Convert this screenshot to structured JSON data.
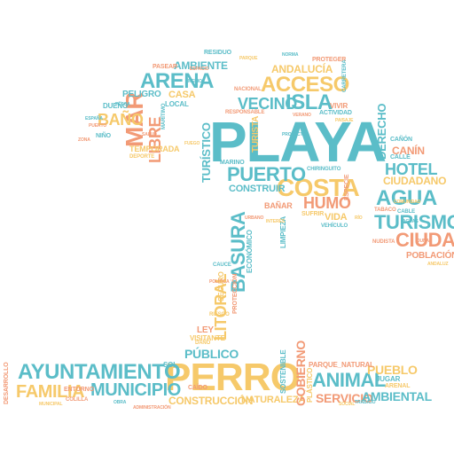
{
  "palette": {
    "teal": "#5bbdc8",
    "orange": "#f29a76",
    "yellow": "#f6c96a"
  },
  "words": [
    {
      "text": "PLAYA",
      "color": "teal"
    },
    {
      "text": "PERRO",
      "color": "yellow"
    },
    {
      "text": "AYUNTAMIENTO",
      "color": "teal"
    },
    {
      "text": "MAR",
      "color": "orange"
    },
    {
      "text": "COSTA",
      "color": "yellow"
    },
    {
      "text": "ACCESO",
      "color": "yellow"
    },
    {
      "text": "ARENA",
      "color": "teal"
    },
    {
      "text": "PUERTO",
      "color": "teal"
    },
    {
      "text": "ISLA",
      "color": "teal"
    },
    {
      "text": "VECINO",
      "color": "teal"
    },
    {
      "text": "AGUA",
      "color": "teal"
    },
    {
      "text": "TURISMO",
      "color": "teal"
    },
    {
      "text": "CIUDAD",
      "color": "orange"
    },
    {
      "text": "HOTEL",
      "color": "teal"
    },
    {
      "text": "BASURA",
      "color": "teal"
    },
    {
      "text": "LITORAL",
      "color": "yellow"
    },
    {
      "text": "ANIMAL",
      "color": "teal"
    },
    {
      "text": "MUNICIPIO",
      "color": "teal"
    },
    {
      "text": "FAMILIA",
      "color": "yellow"
    },
    {
      "text": "HUMO",
      "color": "orange"
    },
    {
      "text": "LIBRE",
      "color": "orange"
    },
    {
      "text": "BAÑO",
      "color": "yellow"
    },
    {
      "text": "CONSTRUCCIÓN",
      "color": "yellow"
    },
    {
      "text": "NATURALEZA",
      "color": "yellow"
    },
    {
      "text": "SERVICIO",
      "color": "orange"
    },
    {
      "text": "PÚBLICO",
      "color": "teal"
    },
    {
      "text": "GOBIERNO",
      "color": "orange"
    },
    {
      "text": "AMBIENTAL",
      "color": "teal"
    },
    {
      "text": "PUEBLO",
      "color": "yellow"
    },
    {
      "text": "CIUDADANO",
      "color": "yellow"
    },
    {
      "text": "DERECHO",
      "color": "teal"
    },
    {
      "text": "POBLACIÓN",
      "color": "orange"
    },
    {
      "text": "CANÍN",
      "color": "orange"
    },
    {
      "text": "AMBIENTE",
      "color": "teal"
    },
    {
      "text": "ANDALUCÍA",
      "color": "yellow"
    },
    {
      "text": "TURÍSTICO",
      "color": "teal"
    },
    {
      "text": "CONSTRUIR",
      "color": "teal"
    },
    {
      "text": "VIDA",
      "color": "yellow"
    },
    {
      "text": "CASA",
      "color": "yellow"
    },
    {
      "text": "PELIGRO",
      "color": "teal"
    },
    {
      "text": "TEMPORADA",
      "color": "yellow"
    },
    {
      "text": "TURISTA",
      "color": "yellow"
    },
    {
      "text": "BAÑAR",
      "color": "orange"
    },
    {
      "text": "LEY",
      "color": "orange"
    },
    {
      "text": "VISITANTE",
      "color": "yellow"
    },
    {
      "text": "ECONÓMICO",
      "color": "teal"
    },
    {
      "text": "SEGURO",
      "color": "yellow"
    },
    {
      "text": "SOSTENIBLE",
      "color": "teal"
    },
    {
      "text": "PLÁSTICO",
      "color": "yellow"
    },
    {
      "text": "PARQUE_NATURAL",
      "color": "orange"
    },
    {
      "text": "JUGAR",
      "color": "teal"
    },
    {
      "text": "ARENAL",
      "color": "yellow"
    },
    {
      "text": "ENTORNO",
      "color": "orange"
    },
    {
      "text": "DESARROLLO",
      "color": "orange"
    },
    {
      "text": "CAÑÓN",
      "color": "teal"
    },
    {
      "text": "DUEÑO",
      "color": "teal"
    },
    {
      "text": "RESIDUO",
      "color": "teal"
    },
    {
      "text": "PROTEGER",
      "color": "orange"
    },
    {
      "text": "VIVIR",
      "color": "orange"
    },
    {
      "text": "ACTIVIDAD",
      "color": "teal"
    },
    {
      "text": "PASEAR",
      "color": "orange"
    },
    {
      "text": "MARINO",
      "color": "teal"
    },
    {
      "text": "LOCAL",
      "color": "teal"
    },
    {
      "text": "LIMPIEZA",
      "color": "teal"
    },
    {
      "text": "ESPECIE",
      "color": "orange"
    },
    {
      "text": "CALLE",
      "color": "teal"
    },
    {
      "text": "SUFRIR",
      "color": "yellow"
    },
    {
      "text": "PROTECCIÓN",
      "color": "orange"
    },
    {
      "text": "VEHÍCULO",
      "color": "teal"
    },
    {
      "text": "TABACO",
      "color": "orange"
    },
    {
      "text": "DAÑO",
      "color": "yellow"
    },
    {
      "text": "RIESGO",
      "color": "yellow"
    },
    {
      "text": "CAUCE",
      "color": "teal"
    },
    {
      "text": "NUDISTA",
      "color": "orange"
    },
    {
      "text": "CABLE",
      "color": "teal"
    },
    {
      "text": "SOL",
      "color": "teal"
    },
    {
      "text": "CAÍDO",
      "color": "orange"
    },
    {
      "text": "COLILLA",
      "color": "orange"
    },
    {
      "text": "NACIONAL",
      "color": "orange"
    },
    {
      "text": "CARRETERA",
      "color": "teal"
    },
    {
      "text": "CHIRINGUITO",
      "color": "teal"
    },
    {
      "text": "RESPONSABLE",
      "color": "orange"
    },
    {
      "text": "MARÍTIMO",
      "color": "teal"
    },
    {
      "text": "NIÑO",
      "color": "teal"
    },
    {
      "text": "DEPORTE",
      "color": "yellow"
    },
    {
      "text": "PUERTO",
      "color": "orange"
    },
    {
      "text": "PARQUE",
      "color": "yellow"
    },
    {
      "text": "ESPACIO",
      "color": "orange"
    },
    {
      "text": "PESCA",
      "color": "teal"
    },
    {
      "text": "ZONA",
      "color": "orange"
    },
    {
      "text": "RÍO",
      "color": "yellow"
    },
    {
      "text": "ANDALUZ",
      "color": "yellow"
    },
    {
      "text": "AGUAS",
      "color": "teal"
    },
    {
      "text": "SALUD",
      "color": "orange"
    },
    {
      "text": "FUEGO",
      "color": "yellow"
    },
    {
      "text": "NORMA",
      "color": "teal"
    },
    {
      "text": "VERANO",
      "color": "orange"
    },
    {
      "text": "MUNICIPAL",
      "color": "yellow"
    },
    {
      "text": "OBRA",
      "color": "teal"
    },
    {
      "text": "COMUNIDAD",
      "color": "yellow"
    },
    {
      "text": "TRABAJO",
      "color": "teal"
    },
    {
      "text": "POLÍTICA",
      "color": "orange"
    },
    {
      "text": "ADMINISTRACIÓN",
      "color": "orange"
    },
    {
      "text": "ESPAÑA",
      "color": "teal"
    },
    {
      "text": "INTERÉS",
      "color": "yellow"
    },
    {
      "text": "MEDIO",
      "color": "teal"
    },
    {
      "text": "DUNA",
      "color": "orange"
    },
    {
      "text": "SOCIAL",
      "color": "yellow"
    },
    {
      "text": "PROYECTO",
      "color": "teal"
    },
    {
      "text": "URBANO",
      "color": "orange"
    },
    {
      "text": "PAISAJE",
      "color": "yellow"
    }
  ]
}
